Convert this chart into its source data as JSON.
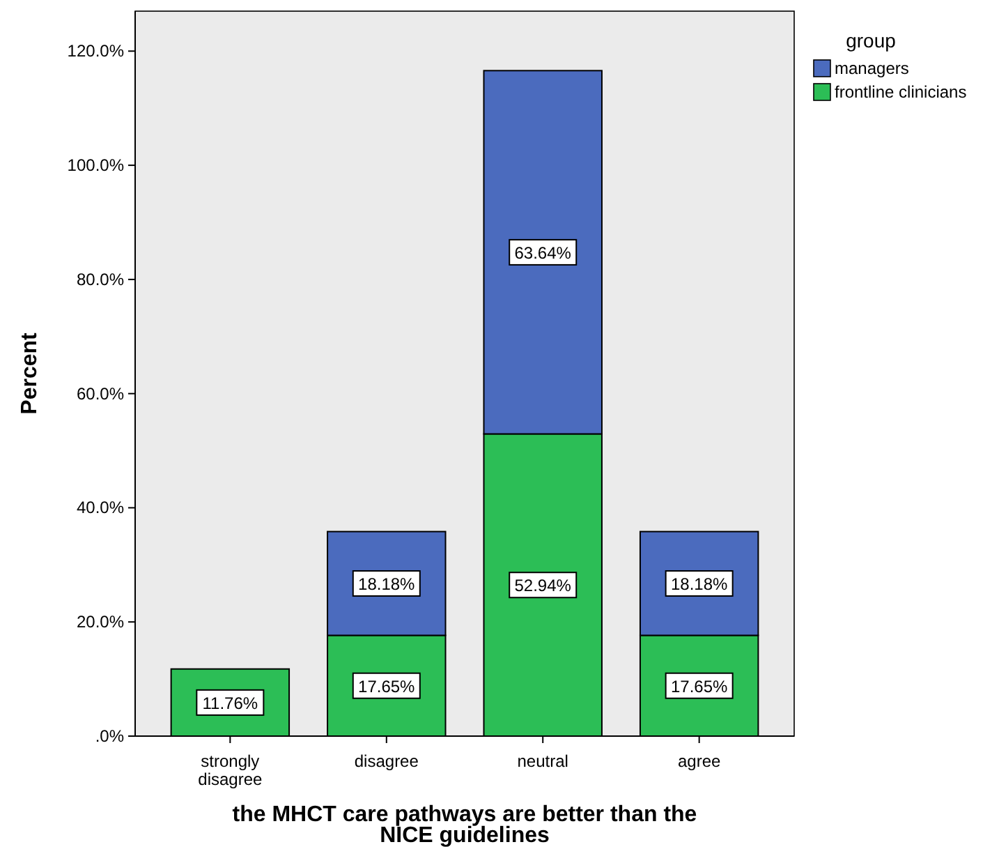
{
  "chart_data": {
    "type": "bar",
    "stacked": true,
    "xlabel": "the MHCT care pathways are better than the NICE guidelines",
    "ylabel": "Percent",
    "legend_title": "group",
    "legend": "top right",
    "categories": [
      "strongly disagree",
      "disagree",
      "neutral",
      "agree"
    ],
    "ylim": [
      0,
      127
    ],
    "yticks": [
      {
        "value": 0,
        "label": ".0%"
      },
      {
        "value": 20,
        "label": "20.0%"
      },
      {
        "value": 40,
        "label": "40.0%"
      },
      {
        "value": 60,
        "label": "60.0%"
      },
      {
        "value": 80,
        "label": "80.0%"
      },
      {
        "value": 100,
        "label": "100.0%"
      },
      {
        "value": 120,
        "label": "120.0%"
      }
    ],
    "series": [
      {
        "name": "frontline clinicians",
        "color": "#2cbe56",
        "values": [
          11.76,
          17.65,
          52.94,
          17.65
        ],
        "value_labels": [
          "11.76%",
          "17.65%",
          "52.94%",
          "17.65%"
        ]
      },
      {
        "name": "managers",
        "color": "#4b6bbe",
        "values": [
          null,
          18.18,
          63.64,
          18.18
        ],
        "value_labels": [
          null,
          "18.18%",
          "63.64%",
          "18.18%"
        ]
      }
    ]
  }
}
